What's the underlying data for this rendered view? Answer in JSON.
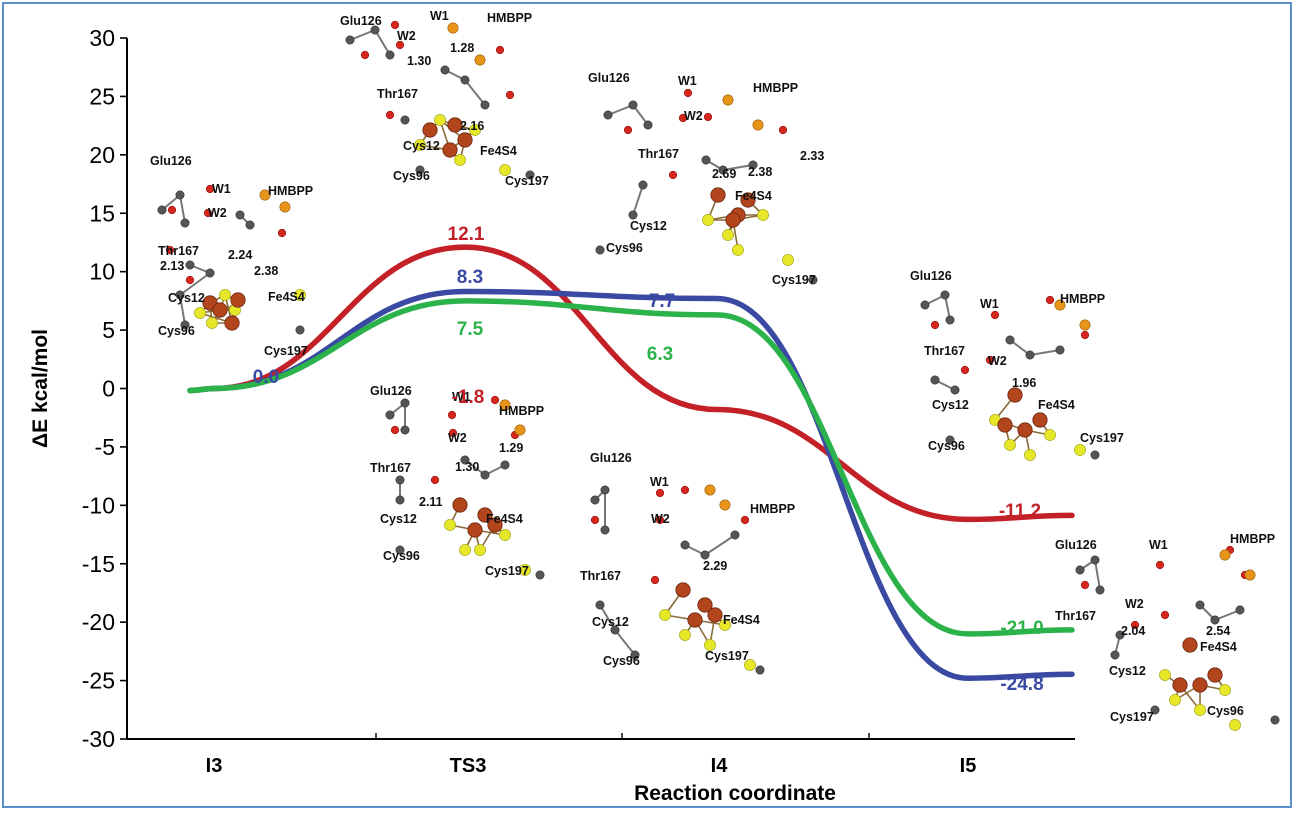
{
  "chart_data": {
    "type": "line",
    "xlabel": "Reaction coordinate",
    "ylabel": "ΔE kcal/mol",
    "ylim": [
      -30,
      30
    ],
    "yticks": [
      "30",
      "25",
      "20",
      "15",
      "10",
      "5",
      "0",
      "-5",
      "-10",
      "-15",
      "-20",
      "-25",
      "-30"
    ],
    "categories": [
      "I3",
      "TS3",
      "I4",
      "I5"
    ],
    "grid": false,
    "series": [
      {
        "color": "#c42027",
        "points": [
          [
            0,
            0.0
          ],
          [
            1,
            12.1
          ],
          [
            2,
            -1.8
          ],
          [
            3,
            -11.2
          ]
        ],
        "labels": [
          "12.1",
          "-1.8",
          "-11.2"
        ]
      },
      {
        "color": "#3a4aa3",
        "points": [
          [
            0,
            0.0
          ],
          [
            1,
            8.3
          ],
          [
            2,
            7.7
          ],
          [
            3,
            -24.8
          ]
        ],
        "labels": [
          "0.0",
          "8.3",
          "7.7",
          "-24.8"
        ]
      },
      {
        "color": "#2bb24a",
        "points": [
          [
            0,
            0.0
          ],
          [
            1,
            7.5
          ],
          [
            2,
            6.3
          ],
          [
            3,
            -21.0
          ]
        ],
        "labels": [
          "7.5",
          "6.3",
          "-21.0"
        ]
      }
    ]
  },
  "structures": [
    {
      "id": "I3",
      "labels": [
        "Glu126",
        "W1",
        "W2",
        "HMBPP",
        "Thr167",
        "2.24",
        "2.13",
        "2.38",
        "Cys12",
        "Fe4S4",
        "Cys96",
        "Cys197"
      ]
    },
    {
      "id": "TS3-top",
      "labels": [
        "Glu126",
        "W1",
        "W2",
        "HMBPP",
        "1.28",
        "1.30",
        "2.16",
        "Thr167",
        "Fe4S4",
        "Cys12",
        "Cys96",
        "Cys197"
      ]
    },
    {
      "id": "I4-top",
      "labels": [
        "Glu126",
        "W1",
        "W2",
        "HMBPP",
        "Thr167",
        "2.33",
        "2.69",
        "2.38",
        "Fe4S4",
        "Cys12",
        "Cys96",
        "Cys197"
      ]
    },
    {
      "id": "TS3-bottom",
      "labels": [
        "Glu126",
        "W1",
        "W2",
        "HMBPP",
        "1.29",
        "1.30",
        "Thr167",
        "2.11",
        "Fe4S4",
        "Cys12",
        "Cys96",
        "Cys197"
      ]
    },
    {
      "id": "I4-bottom",
      "labels": [
        "Glu126",
        "W1",
        "W2",
        "HMBPP",
        "Thr167",
        "2.29",
        "Fe4S4",
        "Cys12",
        "Cys96",
        "Cys197"
      ]
    },
    {
      "id": "I5-top",
      "labels": [
        "Glu126",
        "W1",
        "HMBPP",
        "Thr167",
        "W2",
        "1.96",
        "Cys12",
        "Fe4S4",
        "Cys96",
        "Cys197"
      ]
    },
    {
      "id": "I5-bottom",
      "labels": [
        "Glu126",
        "W1",
        "HMBPP",
        "Thr167",
        "W2",
        "2.04",
        "2.54",
        "Fe4S4",
        "Cys12",
        "Cys96",
        "Cys197"
      ]
    }
  ]
}
